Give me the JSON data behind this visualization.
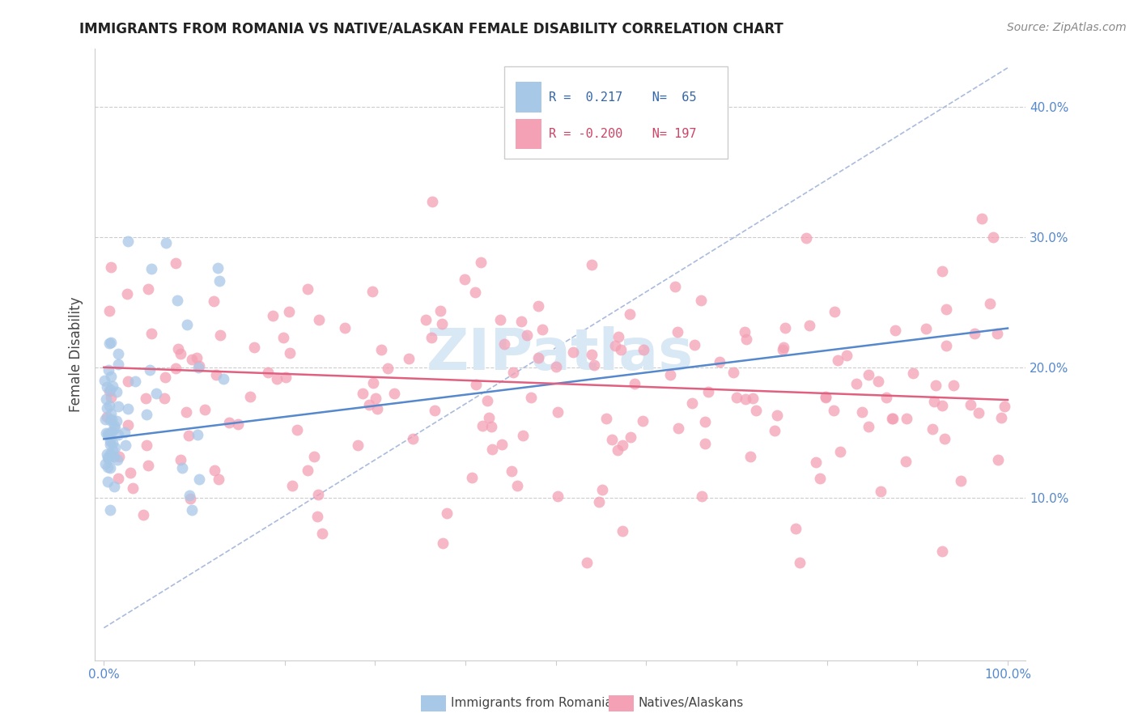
{
  "title": "IMMIGRANTS FROM ROMANIA VS NATIVE/ALASKAN FEMALE DISABILITY CORRELATION CHART",
  "source": "Source: ZipAtlas.com",
  "ylabel": "Female Disability",
  "legend_label1": "Immigrants from Romania",
  "legend_label2": "Natives/Alaskans",
  "r1_text": "R =  0.217",
  "n1_text": "N=  65",
  "r2_text": "R = -0.200",
  "n2_text": "N= 197",
  "r1": 0.217,
  "n1": 65,
  "r2": -0.2,
  "n2": 197,
  "xlim": [
    0.0,
    1.0
  ],
  "ylim": [
    0.0,
    0.43
  ],
  "right_yticks": [
    0.1,
    0.2,
    0.3,
    0.4
  ],
  "right_yticklabels": [
    "10.0%",
    "20.0%",
    "30.0%",
    "40.0%"
  ],
  "color_blue": "#A8C8E8",
  "color_pink": "#F4A0B5",
  "color_blue_line": "#5588CC",
  "color_pink_line": "#E06080",
  "color_dashed": "#AABBDD",
  "watermark_text": "ZIPatlas",
  "watermark_color": "#D8E8F5"
}
